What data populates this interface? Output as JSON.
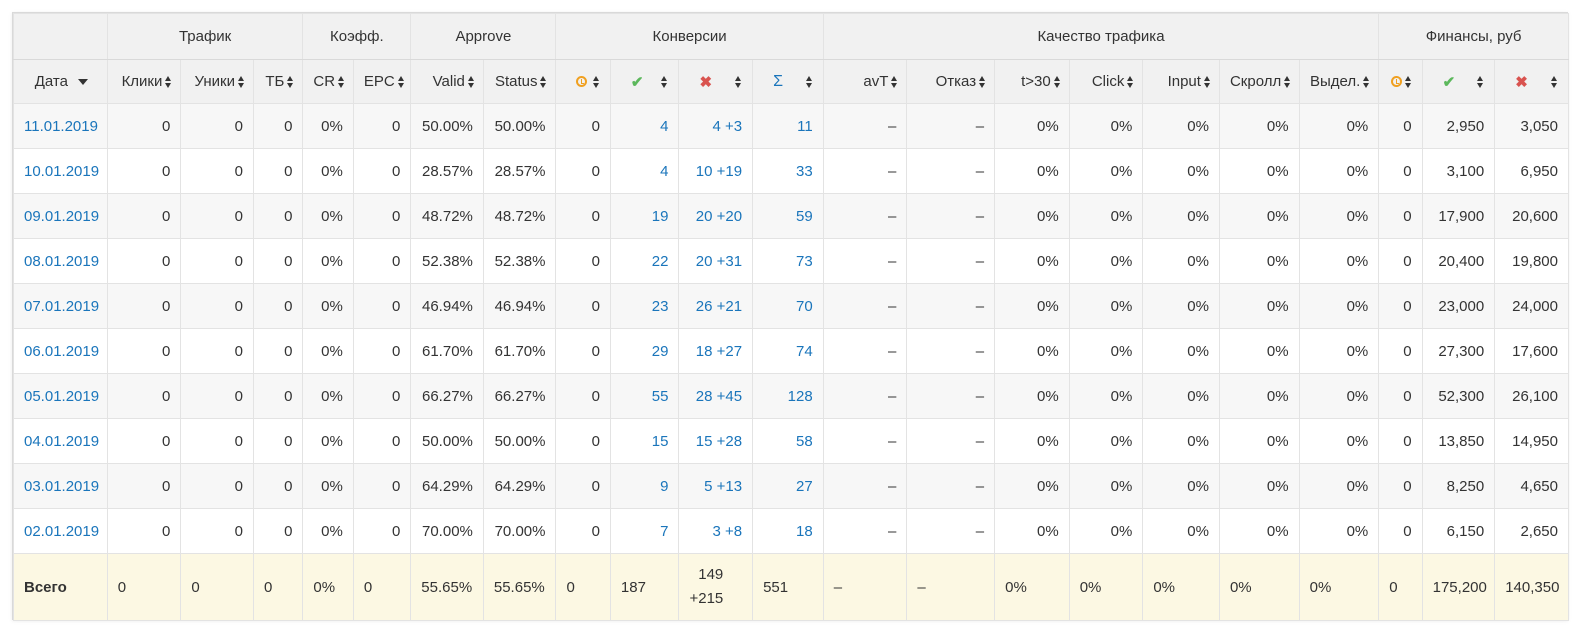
{
  "groups": {
    "traffic": "Трафик",
    "coeff": "Коэфф.",
    "approve": "Approve",
    "conversions": "Конверсии",
    "quality": "Качество трафика",
    "finance": "Финансы, руб"
  },
  "columns": {
    "date": "Дата",
    "clicks": "Клики",
    "uniques": "Уники",
    "tb": "ТБ",
    "cr": "CR",
    "epc": "EPC",
    "valid": "Valid",
    "status": "Status",
    "avt": "avT",
    "otkaz": "Отказ",
    "t30": "t>30",
    "click": "Click",
    "input": "Input",
    "scroll": "Скролл",
    "select": "Выдел."
  },
  "icons": {
    "pending": "clock-icon",
    "approved": "check-icon",
    "rejected": "x-icon",
    "sum": "sigma-icon"
  },
  "rows": [
    {
      "date": "11.01.2019",
      "clicks": "0",
      "uniques": "0",
      "tb": "0",
      "cr": "0%",
      "epc": "0",
      "valid": "50.00%",
      "status": "50.00%",
      "c_pending": "0",
      "c_approved": "4",
      "c_rejected": "4 +3",
      "c_sum": "11",
      "avt": "–",
      "otkaz": "–",
      "t30": "0%",
      "click": "0%",
      "input": "0%",
      "scroll": "0%",
      "select": "0%",
      "f_pending": "0",
      "f_approved": "2,950",
      "f_rejected": "3,050"
    },
    {
      "date": "10.01.2019",
      "clicks": "0",
      "uniques": "0",
      "tb": "0",
      "cr": "0%",
      "epc": "0",
      "valid": "28.57%",
      "status": "28.57%",
      "c_pending": "0",
      "c_approved": "4",
      "c_rejected": "10 +19",
      "c_sum": "33",
      "avt": "–",
      "otkaz": "–",
      "t30": "0%",
      "click": "0%",
      "input": "0%",
      "scroll": "0%",
      "select": "0%",
      "f_pending": "0",
      "f_approved": "3,100",
      "f_rejected": "6,950"
    },
    {
      "date": "09.01.2019",
      "clicks": "0",
      "uniques": "0",
      "tb": "0",
      "cr": "0%",
      "epc": "0",
      "valid": "48.72%",
      "status": "48.72%",
      "c_pending": "0",
      "c_approved": "19",
      "c_rejected": "20 +20",
      "c_sum": "59",
      "avt": "–",
      "otkaz": "–",
      "t30": "0%",
      "click": "0%",
      "input": "0%",
      "scroll": "0%",
      "select": "0%",
      "f_pending": "0",
      "f_approved": "17,900",
      "f_rejected": "20,600"
    },
    {
      "date": "08.01.2019",
      "clicks": "0",
      "uniques": "0",
      "tb": "0",
      "cr": "0%",
      "epc": "0",
      "valid": "52.38%",
      "status": "52.38%",
      "c_pending": "0",
      "c_approved": "22",
      "c_rejected": "20 +31",
      "c_sum": "73",
      "avt": "–",
      "otkaz": "–",
      "t30": "0%",
      "click": "0%",
      "input": "0%",
      "scroll": "0%",
      "select": "0%",
      "f_pending": "0",
      "f_approved": "20,400",
      "f_rejected": "19,800"
    },
    {
      "date": "07.01.2019",
      "clicks": "0",
      "uniques": "0",
      "tb": "0",
      "cr": "0%",
      "epc": "0",
      "valid": "46.94%",
      "status": "46.94%",
      "c_pending": "0",
      "c_approved": "23",
      "c_rejected": "26 +21",
      "c_sum": "70",
      "avt": "–",
      "otkaz": "–",
      "t30": "0%",
      "click": "0%",
      "input": "0%",
      "scroll": "0%",
      "select": "0%",
      "f_pending": "0",
      "f_approved": "23,000",
      "f_rejected": "24,000"
    },
    {
      "date": "06.01.2019",
      "clicks": "0",
      "uniques": "0",
      "tb": "0",
      "cr": "0%",
      "epc": "0",
      "valid": "61.70%",
      "status": "61.70%",
      "c_pending": "0",
      "c_approved": "29",
      "c_rejected": "18 +27",
      "c_sum": "74",
      "avt": "–",
      "otkaz": "–",
      "t30": "0%",
      "click": "0%",
      "input": "0%",
      "scroll": "0%",
      "select": "0%",
      "f_pending": "0",
      "f_approved": "27,300",
      "f_rejected": "17,600"
    },
    {
      "date": "05.01.2019",
      "clicks": "0",
      "uniques": "0",
      "tb": "0",
      "cr": "0%",
      "epc": "0",
      "valid": "66.27%",
      "status": "66.27%",
      "c_pending": "0",
      "c_approved": "55",
      "c_rejected": "28 +45",
      "c_sum": "128",
      "avt": "–",
      "otkaz": "–",
      "t30": "0%",
      "click": "0%",
      "input": "0%",
      "scroll": "0%",
      "select": "0%",
      "f_pending": "0",
      "f_approved": "52,300",
      "f_rejected": "26,100"
    },
    {
      "date": "04.01.2019",
      "clicks": "0",
      "uniques": "0",
      "tb": "0",
      "cr": "0%",
      "epc": "0",
      "valid": "50.00%",
      "status": "50.00%",
      "c_pending": "0",
      "c_approved": "15",
      "c_rejected": "15 +28",
      "c_sum": "58",
      "avt": "–",
      "otkaz": "–",
      "t30": "0%",
      "click": "0%",
      "input": "0%",
      "scroll": "0%",
      "select": "0%",
      "f_pending": "0",
      "f_approved": "13,850",
      "f_rejected": "14,950"
    },
    {
      "date": "03.01.2019",
      "clicks": "0",
      "uniques": "0",
      "tb": "0",
      "cr": "0%",
      "epc": "0",
      "valid": "64.29%",
      "status": "64.29%",
      "c_pending": "0",
      "c_approved": "9",
      "c_rejected": "5 +13",
      "c_sum": "27",
      "avt": "–",
      "otkaz": "–",
      "t30": "0%",
      "click": "0%",
      "input": "0%",
      "scroll": "0%",
      "select": "0%",
      "f_pending": "0",
      "f_approved": "8,250",
      "f_rejected": "4,650"
    },
    {
      "date": "02.01.2019",
      "clicks": "0",
      "uniques": "0",
      "tb": "0",
      "cr": "0%",
      "epc": "0",
      "valid": "70.00%",
      "status": "70.00%",
      "c_pending": "0",
      "c_approved": "7",
      "c_rejected": "3 +8",
      "c_sum": "18",
      "avt": "–",
      "otkaz": "–",
      "t30": "0%",
      "click": "0%",
      "input": "0%",
      "scroll": "0%",
      "select": "0%",
      "f_pending": "0",
      "f_approved": "6,150",
      "f_rejected": "2,650"
    }
  ],
  "total": {
    "label": "Всего",
    "clicks": "0",
    "uniques": "0",
    "tb": "0",
    "cr": "0%",
    "epc": "0",
    "valid": "55.65%",
    "status": "55.65%",
    "c_pending": "0",
    "c_approved": "187",
    "c_rejected_1": "149",
    "c_rejected_2": "+215",
    "c_sum": "551",
    "avt": "–",
    "otkaz": "–",
    "t30": "0%",
    "click": "0%",
    "input": "0%",
    "scroll": "0%",
    "select": "0%",
    "f_pending": "0",
    "f_approved": "175,200",
    "f_rejected": "140,350"
  }
}
